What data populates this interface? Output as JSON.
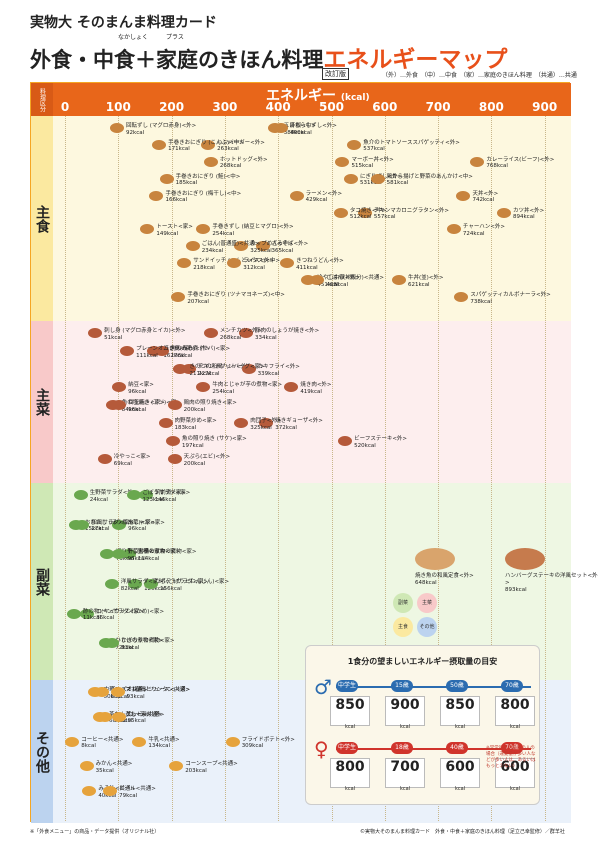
{
  "header": {
    "line1": "実物大 そのまんま料理カード",
    "main_black": "外食・中食＋家庭のきほん料理",
    "main_orange": "エネルギーマップ",
    "ruby_nakashoku": "なかしょく",
    "ruby_plus": "プラス",
    "revised": "改訂版",
    "legend": "（外）…外食　（中）…中食　（家）…家庭のきほん料理　（共通）…共通"
  },
  "axis": {
    "title": "エネルギー",
    "unit": "(kcal)",
    "corner": "料理区分",
    "ticks": [
      "0",
      "100",
      "200",
      "300",
      "400",
      "500",
      "600",
      "700",
      "800",
      "900"
    ]
  },
  "sections": [
    {
      "label": "主食",
      "color": "#fdf8df",
      "band": "#fbe9a0"
    },
    {
      "label": "主菜",
      "color": "#fdeeee",
      "band": "#f8c9c9"
    },
    {
      "label": "副菜",
      "color": "#eef7e3",
      "band": "#cfe8b5"
    },
    {
      "label": "その他",
      "color": "#eaf1fa",
      "band": "#bcd3ef"
    }
  ],
  "items_staple": [
    {
      "name": "回転ずし",
      "sub": "(マグロ赤身)<外>",
      "kcal": "92kcal"
    },
    {
      "name": "ハンバーガー<外>",
      "kcal": "263kcal"
    },
    {
      "name": "ホットドッグ<外>",
      "kcal": "268kcal"
    },
    {
      "name": "にぎりずし<外>",
      "kcal": "531kcal"
    },
    {
      "name": "天丼<外>",
      "kcal": "742kcal"
    },
    {
      "name": "カツ丼<外>",
      "kcal": "894kcal"
    },
    {
      "name": "手巻きずし",
      "sub": "(納豆とマグロ)<外>",
      "kcal": "254kcal"
    },
    {
      "name": "ざるそば<外>",
      "kcal": "365kcal"
    },
    {
      "name": "きつねうどん<外>",
      "kcal": "411kcal"
    },
    {
      "name": "牛丼(並)<外>",
      "kcal": "621kcal"
    },
    {
      "name": "手巻きおにぎり",
      "sub": "(ツナマヨネーズ)<中>",
      "kcal": "207kcal"
    },
    {
      "name": "五目ちらしずし<外>",
      "kcal": "388kcal"
    },
    {
      "name": "魚介のトマトソーススパゲッティ<外>",
      "kcal": "537kcal"
    },
    {
      "name": "カレーライス(ビーフ)<外>",
      "kcal": "768kcal"
    },
    {
      "name": "手巻きおにぎり",
      "sub": "(鮭)<中>",
      "kcal": "185kcal"
    },
    {
      "name": "ラーメン<外>",
      "kcal": "429kcal"
    },
    {
      "name": "チキンマカロニグラタン<外>",
      "kcal": "557kcal"
    },
    {
      "name": "チャーハン<外>",
      "kcal": "724kcal"
    },
    {
      "name": "カップめん<中>",
      "kcal": "325kcal"
    },
    {
      "name": "サンドイッチ",
      "sub": "(ハムとレタス)<中>",
      "kcal": "218kcal"
    },
    {
      "name": "冷やし中華<外>",
      "kcal": "451kcal"
    },
    {
      "name": "スパゲッティカルボナーラ<外>",
      "kcal": "738kcal"
    },
    {
      "name": "赤飯<中>",
      "kcal": "400kcal"
    },
    {
      "name": "手巻きおにぎり",
      "sub": "(こんぶ)<中>",
      "kcal": "171kcal"
    },
    {
      "name": "マーボー丼<外>",
      "kcal": "515kcal"
    },
    {
      "name": "鶏から揚げと野菜のあんかけ<中>",
      "kcal": "581kcal"
    },
    {
      "name": "手巻きおにぎり",
      "sub": "(梅干し)<中>",
      "kcal": "166kcal"
    },
    {
      "name": "タコ焼き<中>",
      "kcal": "512kcal"
    },
    {
      "name": "トースト<家>",
      "kcal": "149kcal"
    },
    {
      "name": "ごはん(普通盛)<共通>",
      "kcal": "234kcal"
    },
    {
      "name": "ライス<外>",
      "kcal": "312kcal"
    },
    {
      "name": "ごはん(丼飯分)<共通>",
      "kcal": "468kcal"
    }
  ],
  "items_main": [
    {
      "name": "刺し身",
      "sub": "(マグロ赤身とイカ)<外>",
      "kcal": "51kcal"
    },
    {
      "name": "焼き鳥(たれ)<外>",
      "kcal": "162kcal"
    },
    {
      "name": "チキンナゲット<外>",
      "kcal": "227kcal"
    },
    {
      "name": "焼き肉<外>",
      "kcal": "419kcal"
    },
    {
      "name": "魚の塩焼き",
      "sub": "(アジ)<家>",
      "kcal": "84kcal"
    },
    {
      "name": "焼きギョーザ<外>",
      "kcal": "372kcal"
    },
    {
      "name": "魚の照り焼き",
      "sub": "(サケ)<家>",
      "kcal": "197kcal"
    },
    {
      "name": "天ぷら(エビ)<外>",
      "kcal": "200kcal"
    },
    {
      "name": "豚肉のしょうが焼き<外>",
      "kcal": "334kcal"
    },
    {
      "name": "魚のみそ煮",
      "sub": "(サバ)<家>",
      "kcal": "176kcal"
    },
    {
      "name": "カキフライ<外>",
      "kcal": "339kcal"
    },
    {
      "name": "納豆<家>",
      "kcal": "96kcal"
    },
    {
      "name": "鶏肉の照り焼き<家>",
      "kcal": "200kcal"
    },
    {
      "name": "肉団子<外>",
      "kcal": "325kcal"
    },
    {
      "name": "ビーフステーキ<外>",
      "kcal": "520kcal"
    },
    {
      "name": "冷やっこ<家>",
      "kcal": "69kcal"
    },
    {
      "name": "メンチカツ<外>",
      "kcal": "268kcal"
    },
    {
      "name": "プレーンオムレツ<家>",
      "kcal": "111kcal"
    },
    {
      "name": "きのこの和風ハンバーグ<家>",
      "kcal": "211kcal"
    },
    {
      "name": "牛肉とじゃが芋の煮物<家>",
      "kcal": "254kcal"
    },
    {
      "name": "目玉焼き<家>",
      "kcal": "96kcal"
    },
    {
      "name": "肉野菜炒め<家>",
      "kcal": "183kcal"
    }
  ],
  "items_side": [
    {
      "name": "生野菜サラダ<外>",
      "kcal": "24kcal"
    },
    {
      "name": "肉じゃが<家>",
      "kcal": "96kcal"
    },
    {
      "name": "里芋とイカの煮物<家>",
      "kcal": "114kcal"
    },
    {
      "name": "きんぴら(ごぼうとにんじん)<家>",
      "kcal": "126kcal"
    },
    {
      "name": "コーンサラダ<家>",
      "kcal": "36kcal"
    },
    {
      "name": "ひじきの煮物<家>",
      "kcal": "72kcal"
    },
    {
      "name": "筑前煮<家>",
      "kcal": "146kcal"
    },
    {
      "name": "おひたし",
      "sub": "(ほうれん草)<家>",
      "kcal": "15kcal"
    },
    {
      "name": "切り干し大根の煮物<家>",
      "kcal": "73kcal"
    },
    {
      "name": "ポテトサラダ<家>",
      "kcal": "156kcal"
    },
    {
      "name": "酢の物",
      "sub": "(キュウリとわかめ)<家>",
      "kcal": "11kcal"
    },
    {
      "name": "かぼちゃの煮物<家>",
      "kcal": "83kcal"
    },
    {
      "name": "ごぼうサラダ<家>",
      "kcal": "123kcal"
    },
    {
      "name": "和風サラダ<家>",
      "kcal": "27kcal"
    },
    {
      "name": "野菜炒め<家>",
      "kcal": "95kcal"
    },
    {
      "name": "洋風サラダ<家>",
      "kcal": "82kcal"
    }
  ],
  "items_other": [
    {
      "name": "中華スープ",
      "sub": "(春雨とワンタン)<家>",
      "kcal": "50kcal"
    },
    {
      "name": "茶わん蒸し<家>",
      "kcal": "60kcal"
    },
    {
      "name": "牛乳<共通>",
      "kcal": "134kcal"
    },
    {
      "name": "コーンスープ<共通>",
      "kcal": "203kcal"
    },
    {
      "name": "みそ汁<共通>",
      "kcal": "40kcal"
    },
    {
      "name": "チーズ<共通>",
      "kcal": "63kcal"
    },
    {
      "name": "ヨーグルト<共通>",
      "kcal": "70kcal"
    },
    {
      "name": "フライドポテト<外>",
      "kcal": "309kcal"
    },
    {
      "name": "みかん<共通>",
      "kcal": "35kcal"
    },
    {
      "name": "ビール<共通>",
      "kcal": "79kcal"
    },
    {
      "name": "オレンジジュース<共通>",
      "kcal": "93kcal"
    },
    {
      "name": "コーラ<共通>",
      "kcal": "95kcal"
    },
    {
      "name": "コーヒー<共通>",
      "kcal": "8kcal"
    }
  ],
  "set_meals": [
    {
      "name": "焼き魚の和風定食<外>",
      "kcal": "648kcal"
    },
    {
      "name": "ハンバーグステーキの洋風セット<外>",
      "kcal": "893kcal"
    }
  ],
  "quadrant_legend": [
    "副菜",
    "主菜",
    "主食",
    "その他"
  ],
  "intake_box": {
    "title": "1食分の望ましいエネルギー摂取量の目安",
    "male_ages": [
      "中学生",
      "15歳",
      "50歳",
      "70歳"
    ],
    "male_kcal": [
      "850",
      "900",
      "850",
      "800"
    ],
    "female_ages": [
      "中学生",
      "18歳",
      "40歳",
      "70歳"
    ],
    "female_kcal": [
      "800",
      "700",
      "600",
      "600"
    ],
    "kcal_unit": "kcal",
    "note": "※常常的な活動量の人の場合（運動量が多い人などが多い人は、あるいはもっと少ない）"
  },
  "footer": {
    "left": "※「外食メニュー」の商品・データ提供（オリジナル社）",
    "right": "©実物大そのまんま料理カード　外食・中食＋家庭のきほん料理（足立己幸監修）／群羊社"
  },
  "colors": {
    "orange": "#e8661a",
    "staple": "#fbe9a0",
    "main": "#f8c9c9",
    "side": "#cfe8b5",
    "other": "#bcd3ef"
  }
}
